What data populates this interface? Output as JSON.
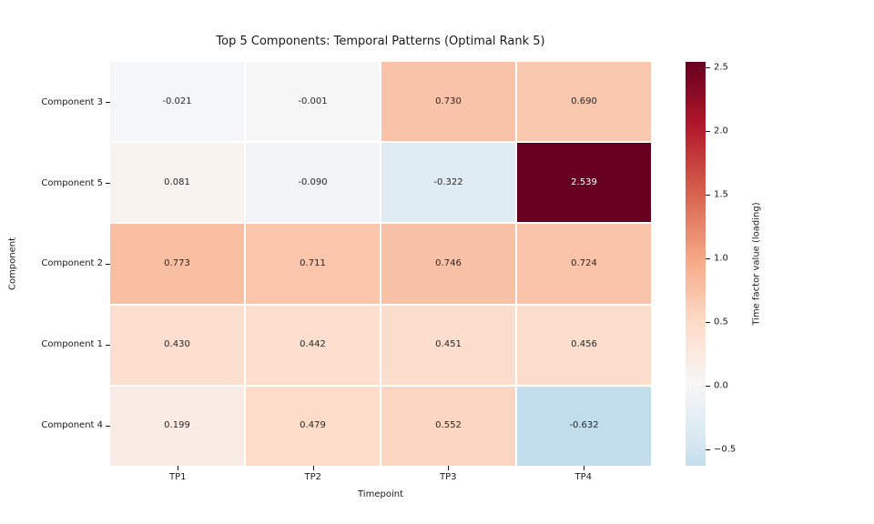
{
  "chart_data": {
    "type": "heatmap",
    "title": "Top 5 Components: Temporal Patterns (Optimal Rank 5)",
    "xlabel": "Timepoint",
    "ylabel": "Component",
    "columns": [
      "TP1",
      "TP2",
      "TP3",
      "TP4"
    ],
    "rows": [
      "Component 3",
      "Component 5",
      "Component 2",
      "Component 1",
      "Component 4"
    ],
    "values": [
      [
        -0.021,
        -0.001,
        0.73,
        0.69
      ],
      [
        0.081,
        -0.09,
        -0.322,
        2.539
      ],
      [
        0.773,
        0.711,
        0.746,
        0.724
      ],
      [
        0.43,
        0.442,
        0.451,
        0.456
      ],
      [
        0.199,
        0.479,
        0.552,
        -0.632
      ]
    ],
    "cell_labels": [
      [
        "-0.021",
        "-0.001",
        "0.730",
        "0.690"
      ],
      [
        "0.081",
        "-0.090",
        "-0.322",
        "2.539"
      ],
      [
        "0.773",
        "0.711",
        "0.746",
        "0.724"
      ],
      [
        "0.430",
        "0.442",
        "0.451",
        "0.456"
      ],
      [
        "0.199",
        "0.479",
        "0.552",
        "-0.632"
      ]
    ],
    "colorbar": {
      "label": "Time factor value (loading)",
      "vmin": -0.632,
      "vmax": 2.539,
      "center": 0,
      "ticks": [
        2.5,
        2.0,
        1.5,
        1.0,
        0.5,
        0.0,
        -0.5
      ],
      "tick_labels": [
        "2.5",
        "2.0",
        "1.5",
        "1.0",
        "0.5",
        "0.0",
        "−0.5"
      ]
    },
    "colormap": {
      "name": "RdBu_r",
      "anchors": [
        "#053061",
        "#2166ac",
        "#4393c3",
        "#92c5de",
        "#d1e5f0",
        "#f7f7f7",
        "#fddbc7",
        "#f4a582",
        "#d6604d",
        "#b2182b",
        "#67001f"
      ]
    },
    "grid_line_color": "#ffffff",
    "text_colors": {
      "dark_cell_text": "#262626",
      "light_cell_text": "#ffffff",
      "axis_text": "#1a1a1a"
    },
    "legend_position": "right",
    "grid": false
  }
}
